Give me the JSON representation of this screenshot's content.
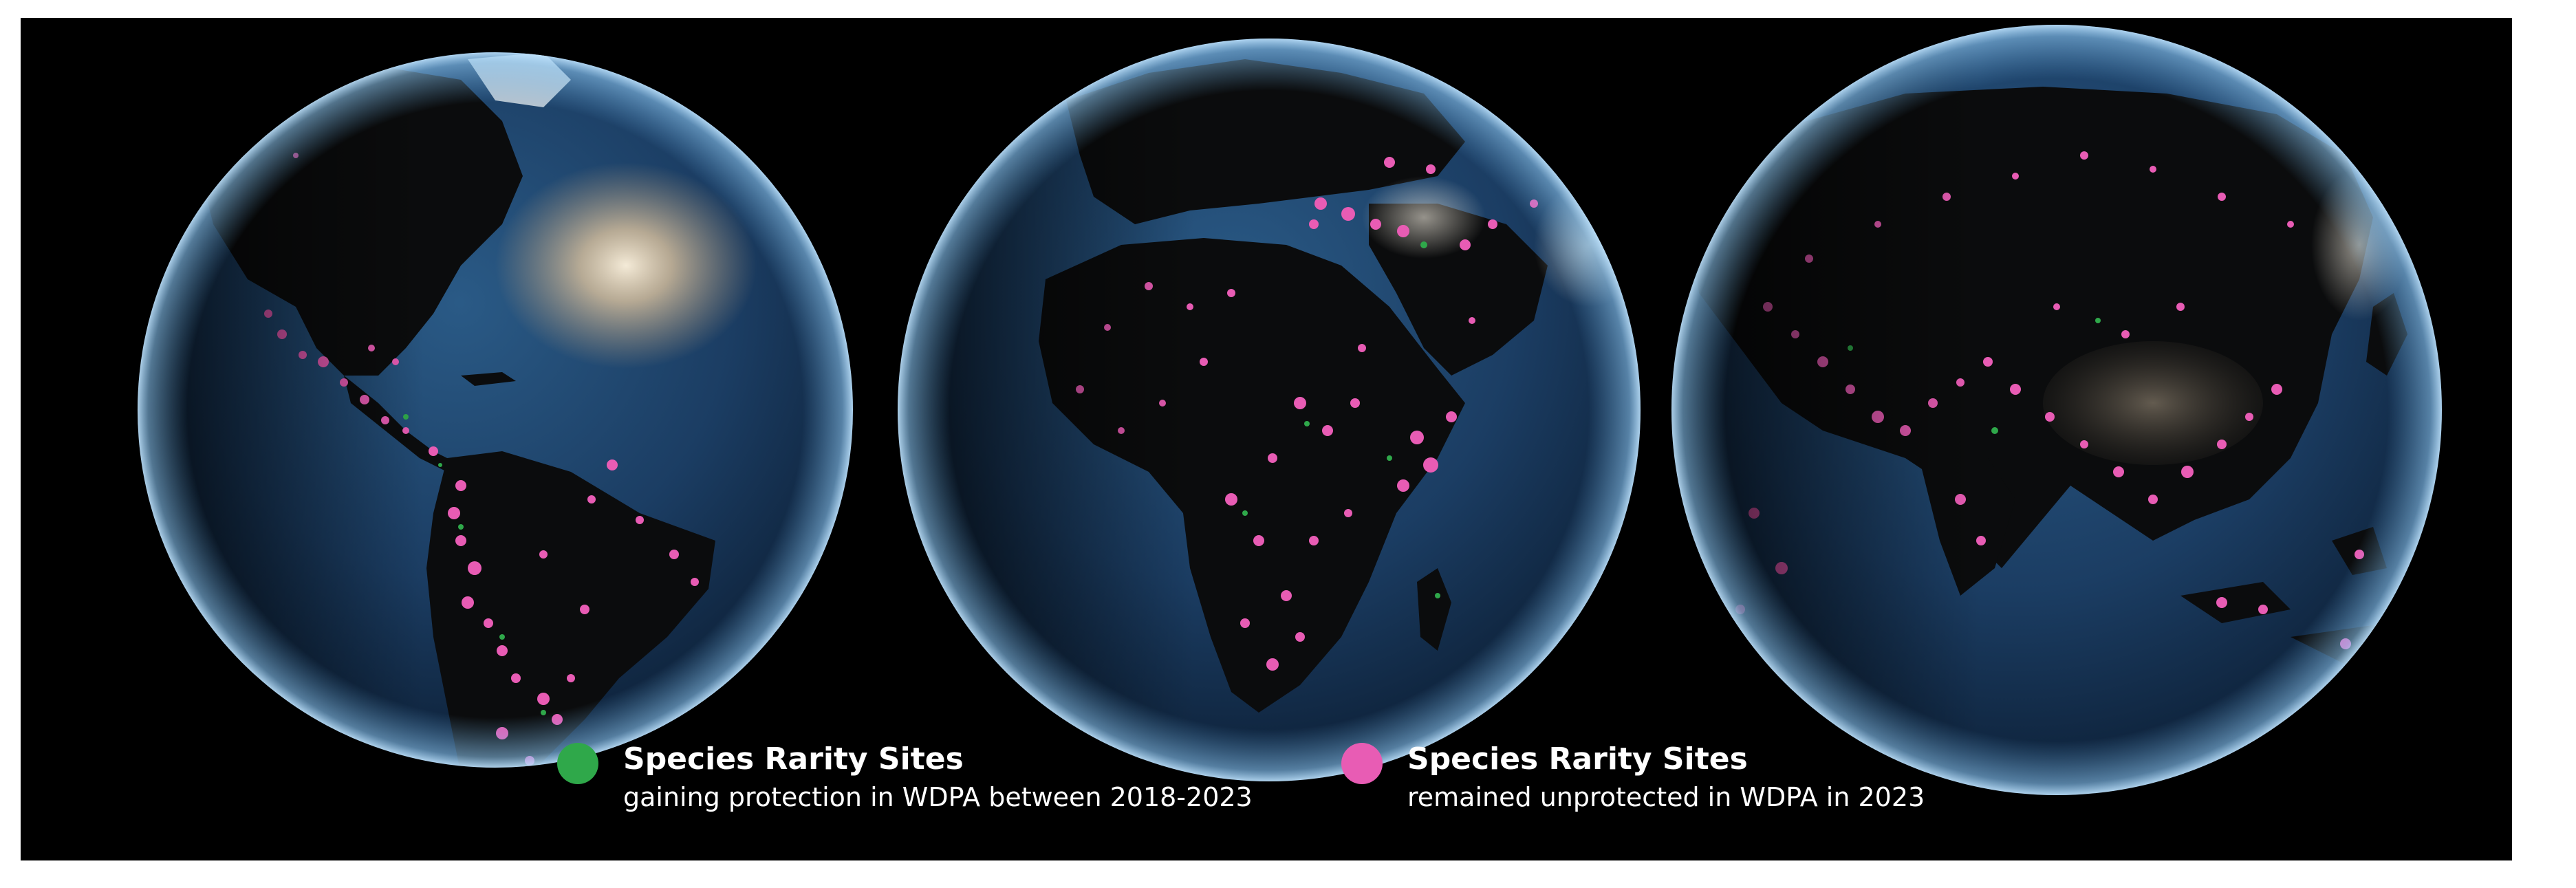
{
  "figure": {
    "globes": [
      {
        "view": "Americas"
      },
      {
        "view": "Africa and Europe"
      },
      {
        "view": "Asia"
      }
    ],
    "colors": {
      "background": "#000000",
      "ocean": "#1c3f63",
      "land": "#0b0c0d",
      "atmosphere": "#6fb4e8",
      "gaining_protection": "#2fa84a",
      "unprotected": "#e85cb4"
    }
  },
  "legend": {
    "gaining": {
      "title": "Species Rarity Sites",
      "subtitle": "gaining protection in WDPA between 2018-2023",
      "color": "#2fa84a"
    },
    "unprotected": {
      "title": "Species Rarity Sites",
      "subtitle": "remained unprotected in WDPA in 2023",
      "color": "#e85cb4"
    }
  }
}
